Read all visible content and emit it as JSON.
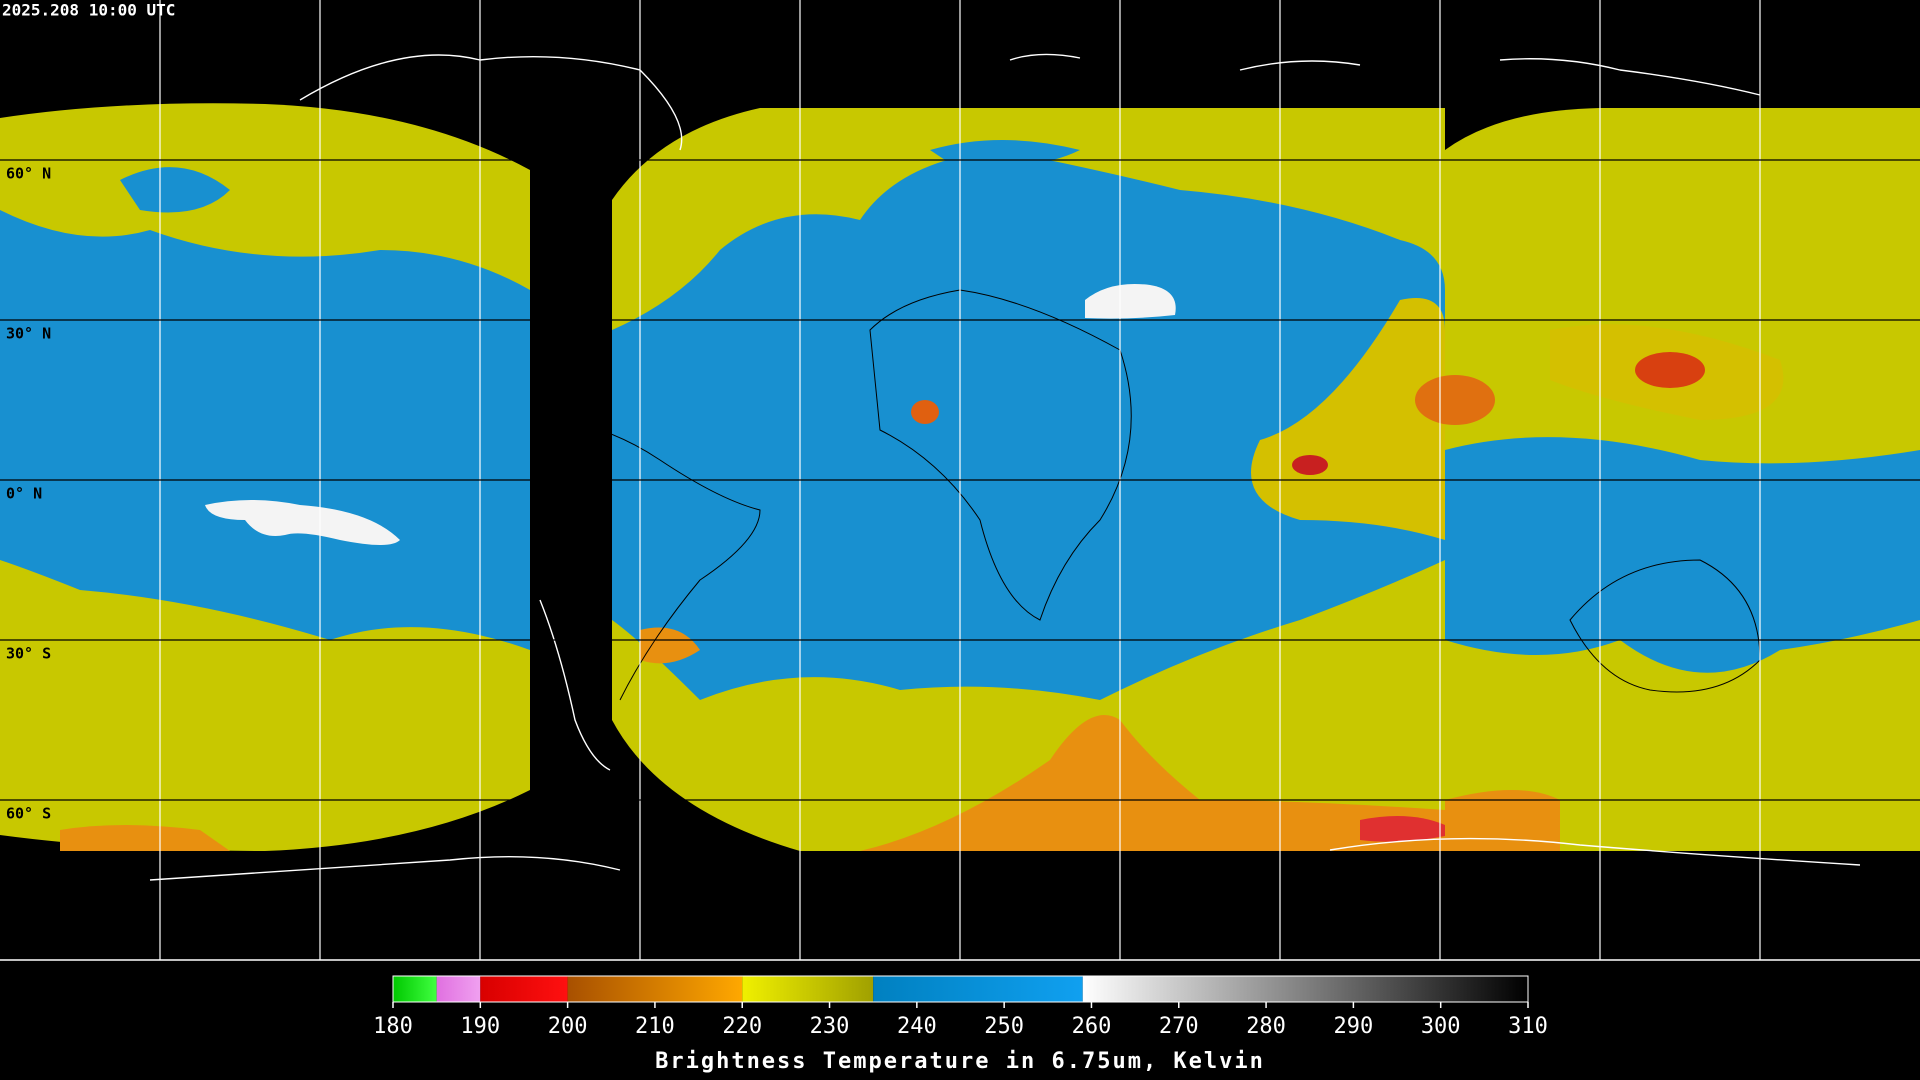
{
  "header": {
    "timestamp": "2025.208 10:00 UTC"
  },
  "map": {
    "latitudes": [
      {
        "value": 60,
        "label": "60° N"
      },
      {
        "value": 30,
        "label": "30° N"
      },
      {
        "value": 0,
        "label": "0° N"
      },
      {
        "value": -30,
        "label": "30° S"
      },
      {
        "value": -60,
        "label": "60° S"
      }
    ],
    "lat_range": [
      90,
      -90
    ]
  },
  "colorbar": {
    "title": "Brightness Temperature in 6.75um, Kelvin",
    "range": [
      180,
      310
    ],
    "ticks": [
      180,
      190,
      200,
      210,
      220,
      230,
      240,
      250,
      260,
      270,
      280,
      290,
      300,
      310
    ],
    "segments": [
      {
        "from": 180,
        "to": 185,
        "colors": [
          "#00c800",
          "#40ff40"
        ]
      },
      {
        "from": 185,
        "to": 190,
        "colors": [
          "#e070e0",
          "#f0a0f0"
        ]
      },
      {
        "from": 190,
        "to": 200,
        "colors": [
          "#d80000",
          "#ff1010"
        ]
      },
      {
        "from": 200,
        "to": 220,
        "colors": [
          "#a85000",
          "#ffa800"
        ]
      },
      {
        "from": 220,
        "to": 235,
        "colors": [
          "#f0f000",
          "#a0a000"
        ]
      },
      {
        "from": 235,
        "to": 259,
        "colors": [
          "#0080c0",
          "#10a0f0"
        ]
      },
      {
        "from": 259,
        "to": 310,
        "colors": [
          "#ffffff",
          "#000000"
        ]
      }
    ]
  }
}
